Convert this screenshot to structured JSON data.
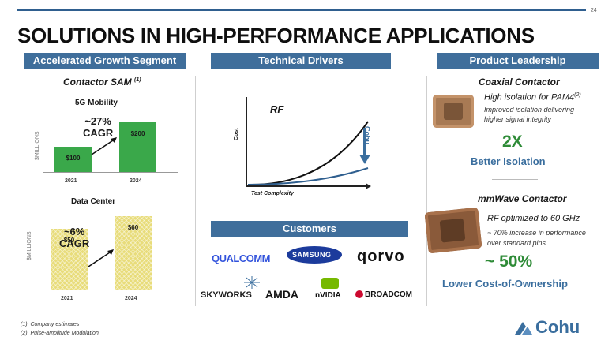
{
  "page_number": "24",
  "title": "SOLUTIONS IN HIGH-PERFORMANCE APPLICATIONS",
  "colors": {
    "banner": "#3f6e9b",
    "green_bar": "#3aa84a",
    "yellow_bar": "#e8dc7a",
    "accent_green": "#2e8b37",
    "accent_blue": "#3a6e9e"
  },
  "left": {
    "banner": "Accelerated Growth Segment",
    "subtitle": "Contactor SAM",
    "subtitle_sup": "(1)",
    "mobility": {
      "label": "5G Mobility",
      "ylabel": "$MILLIONS",
      "cagr": "~27%\nCAGR",
      "bars": [
        {
          "label": "$100",
          "year": "2021"
        },
        {
          "label": "$200",
          "year": "2024"
        }
      ]
    },
    "datacenter": {
      "label": "Data Center",
      "ylabel": "$MILLIONS",
      "cagr": "~6%\nCAGR",
      "bars": [
        {
          "label": "$50",
          "year": "2021"
        },
        {
          "label": "$60",
          "year": "2024"
        }
      ]
    }
  },
  "middle": {
    "banner": "Technical Drivers",
    "chart_label": "RF",
    "ylabel": "Cost",
    "xlabel": "Test Complexity",
    "brand_mark": "Cohu",
    "customers_banner": "Customers",
    "customers": [
      "QUALCOMM",
      "SAMSUNG",
      "qorvo",
      "SKYWORKS",
      "AMDA",
      "nVIDIA",
      "BROADCOM"
    ]
  },
  "right": {
    "banner": "Product Leadership",
    "coaxial": {
      "title": "Coaxial Contactor",
      "headline": "High isolation for PAM4",
      "headline_sup": "(2)",
      "desc_1": "Improved isolation delivering",
      "desc_2": "higher signal integrity",
      "big": "2X",
      "big_label": "Better Isolation"
    },
    "mmwave": {
      "title": "mmWave Contactor",
      "headline": "RF optimized to 60 GHz",
      "desc_1": "~  70% increase in performance",
      "desc_2": "over standard pins",
      "big": "~ 50%",
      "big_label": "Lower Cost-of-Ownership"
    }
  },
  "footnotes": [
    {
      "num": "(1)",
      "text": "Company estimates"
    },
    {
      "num": "(2)",
      "text": "Pulse-amplitude Modulation"
    }
  ],
  "footer_logo": "Cohu",
  "chart_data": [
    {
      "type": "bar",
      "title": "5G Mobility",
      "ylabel": "$MILLIONS",
      "categories": [
        "2021",
        "2024"
      ],
      "values": [
        100,
        200
      ]
    },
    {
      "type": "bar",
      "title": "Data Center",
      "ylabel": "$MILLIONS",
      "categories": [
        "2021",
        "2024"
      ],
      "values": [
        50,
        60
      ]
    }
  ]
}
